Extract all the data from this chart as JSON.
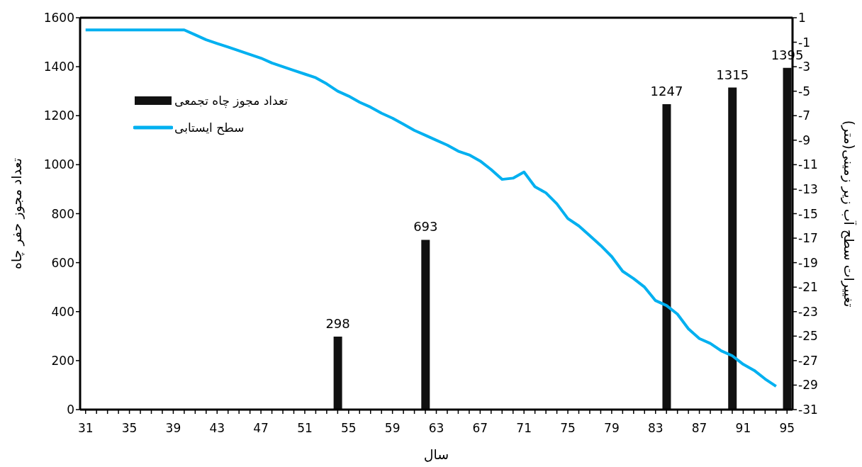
{
  "chart_data": {
    "type": "bar",
    "xlabel": "سال",
    "ylabel": "تعداد مجوز حفر چاه",
    "y2label": "تغییرات سطح آب زیر زمینی(متر)",
    "categories": [
      "31",
      null,
      null,
      null,
      "35",
      null,
      null,
      null,
      "39",
      null,
      null,
      null,
      "43",
      null,
      null,
      null,
      "47",
      null,
      null,
      null,
      "51",
      null,
      null,
      null,
      "55",
      null,
      null,
      null,
      "59",
      null,
      null,
      null,
      "63",
      null,
      null,
      null,
      "67",
      null,
      null,
      null,
      "71",
      null,
      null,
      null,
      "75",
      null,
      null,
      null,
      "79",
      null,
      null,
      null,
      "83",
      null,
      null,
      null,
      "87",
      null,
      null,
      null,
      "91",
      null,
      null,
      null,
      "95"
    ],
    "series": [
      {
        "name": "تعداد مجوز چاه تجمعی",
        "color": "#111111",
        "values": [
          null,
          null,
          null,
          null,
          null,
          null,
          null,
          null,
          null,
          null,
          null,
          null,
          null,
          null,
          null,
          null,
          null,
          null,
          null,
          null,
          null,
          null,
          null,
          298,
          null,
          null,
          null,
          null,
          null,
          null,
          null,
          693,
          null,
          null,
          null,
          null,
          null,
          null,
          null,
          null,
          null,
          null,
          null,
          null,
          null,
          null,
          null,
          null,
          null,
          null,
          null,
          null,
          null,
          1247,
          null,
          null,
          null,
          null,
          null,
          1315,
          null,
          null,
          null,
          null,
          1395
        ],
        "value_labels": [
          null,
          null,
          null,
          null,
          null,
          null,
          null,
          null,
          null,
          null,
          null,
          null,
          null,
          null,
          null,
          null,
          null,
          null,
          null,
          null,
          null,
          null,
          null,
          "298",
          null,
          null,
          null,
          null,
          null,
          null,
          null,
          "693",
          null,
          null,
          null,
          null,
          null,
          null,
          null,
          null,
          null,
          null,
          null,
          null,
          null,
          null,
          null,
          null,
          null,
          null,
          null,
          null,
          null,
          "1247",
          null,
          null,
          null,
          null,
          null,
          "1315",
          null,
          null,
          null,
          null,
          "1395"
        ]
      },
      {
        "name": "سطح ایستابی",
        "type": "line",
        "axis": "y2",
        "color": "#00b0f0",
        "values": [
          0,
          0,
          0,
          0,
          0,
          0,
          0,
          0,
          0,
          0,
          -0.4,
          -0.8,
          -1.1,
          -1.4,
          -1.7,
          -2.0,
          -2.3,
          -2.7,
          -3.0,
          -3.3,
          -3.6,
          -3.9,
          -4.4,
          -5.0,
          -5.4,
          -5.9,
          -6.3,
          -6.8,
          -7.2,
          -7.7,
          -8.2,
          -8.6,
          -9.0,
          -9.4,
          -9.9,
          -10.2,
          -10.7,
          -11.4,
          -12.2,
          -12.1,
          -11.6,
          -12.8,
          -13.3,
          -14.2,
          -15.4,
          -16.0,
          -16.8,
          -17.6,
          -18.5,
          -19.7,
          -20.3,
          -21.0,
          -22.1,
          -22.5,
          -23.2,
          -24.4,
          -25.2,
          -25.6,
          -26.2,
          -26.6,
          -27.3,
          -27.8,
          -28.5,
          -29.1,
          null
        ]
      }
    ],
    "ylim": [
      0,
      1600
    ],
    "yticks": [
      0,
      200,
      400,
      600,
      800,
      1000,
      1200,
      1400,
      1600
    ],
    "y2lim": [
      -31,
      1
    ],
    "y2ticks": [
      1,
      -1,
      -3,
      -5,
      -7,
      -9,
      -11,
      -13,
      -15,
      -17,
      -19,
      -21,
      -23,
      -25,
      -27,
      -29,
      -31
    ],
    "legend": "top left",
    "marker": "none",
    "grid": false
  }
}
